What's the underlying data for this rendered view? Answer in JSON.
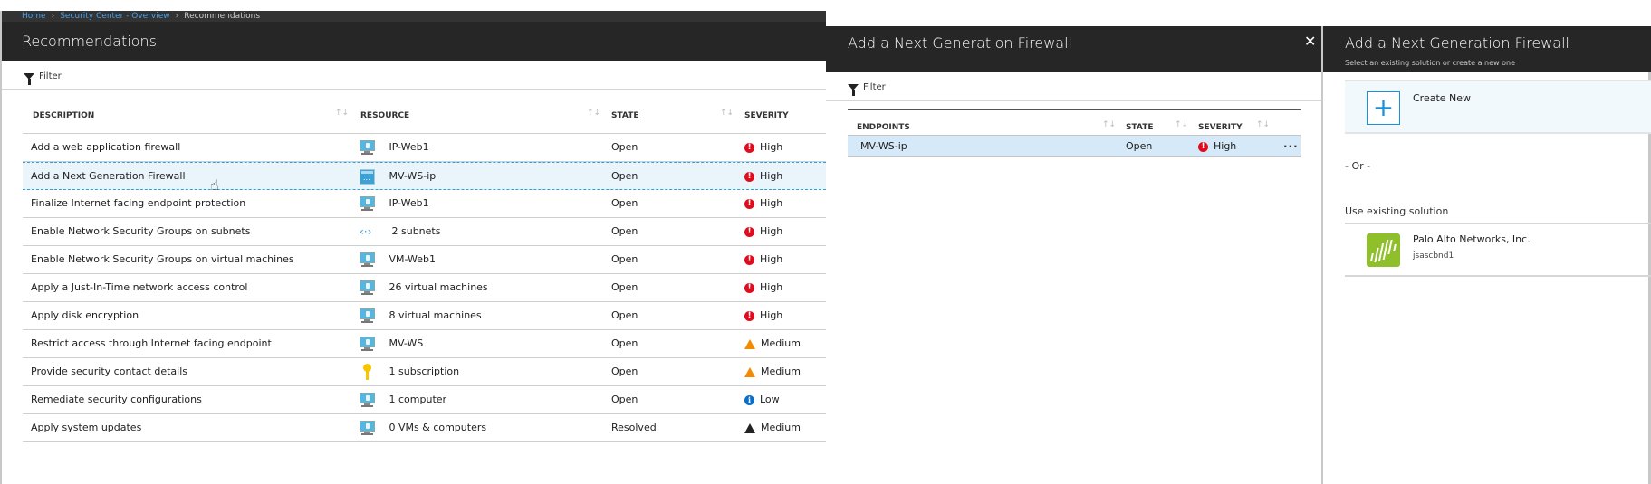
{
  "breadcrumb": {
    "items": [
      "Home",
      "Security Center - Overview",
      "Recommendations"
    ]
  },
  "left": {
    "title": "Recommendations",
    "filter_label": "Filter",
    "columns": [
      "DESCRIPTION",
      "RESOURCE",
      "STATE",
      "SEVERITY"
    ],
    "sort_glyph": "↑↓",
    "rows": [
      {
        "description": "Add a web application firewall",
        "resource": "IP-Web1",
        "resource_icon": "vm-icon",
        "state": "Open",
        "severity": "High"
      },
      {
        "description": "Add a Next Generation Firewall",
        "resource": "MV-WS-ip",
        "resource_icon": "public-ip-icon",
        "state": "Open",
        "severity": "High",
        "selected": true
      },
      {
        "description": "Finalize Internet facing endpoint protection",
        "resource": "IP-Web1",
        "resource_icon": "vm-icon",
        "state": "Open",
        "severity": "High"
      },
      {
        "description": "Enable Network Security Groups on subnets",
        "resource": "2 subnets",
        "resource_icon": "subnet-icon",
        "state": "Open",
        "severity": "High"
      },
      {
        "description": "Enable Network Security Groups on virtual machines",
        "resource": "VM-Web1",
        "resource_icon": "vm-icon",
        "state": "Open",
        "severity": "High"
      },
      {
        "description": "Apply a Just-In-Time network access control",
        "resource": "26 virtual machines",
        "resource_icon": "vm-icon",
        "state": "Open",
        "severity": "High"
      },
      {
        "description": "Apply disk encryption",
        "resource": "8 virtual machines",
        "resource_icon": "vm-icon",
        "state": "Open",
        "severity": "High"
      },
      {
        "description": "Restrict access through Internet facing endpoint",
        "resource": "MV-WS",
        "resource_icon": "vm-icon",
        "state": "Open",
        "severity": "Medium"
      },
      {
        "description": "Provide security contact details",
        "resource": "1 subscription",
        "resource_icon": "key-icon",
        "state": "Open",
        "severity": "Medium"
      },
      {
        "description": "Remediate security configurations",
        "resource": "1 computer",
        "resource_icon": "vm-icon",
        "state": "Open",
        "severity": "Low"
      },
      {
        "description": "Apply system updates",
        "resource": "0 VMs & computers",
        "resource_icon": "vm-icon",
        "state": "Resolved",
        "severity": "Medium",
        "severity_style": "dark"
      }
    ]
  },
  "middle": {
    "title": "Add a Next Generation Firewall",
    "close_glyph": "✕",
    "filter_label": "Filter",
    "columns": [
      "ENDPOINTS",
      "STATE",
      "SEVERITY"
    ],
    "rows": [
      {
        "endpoint": "MV-WS-ip",
        "state": "Open",
        "severity": "High",
        "more": "..."
      }
    ]
  },
  "right": {
    "title": "Add a Next Generation Firewall",
    "subtitle": "Select an existing solution or create a new one",
    "create_new_label": "Create New",
    "plus_glyph": "+",
    "or_label": "- Or -",
    "existing_label": "Use existing solution",
    "solution": {
      "name": "Palo Alto Networks, Inc.",
      "id": "jsascbnd1"
    }
  },
  "colors": {
    "header_bg": "#262626",
    "link": "#4aa0e6",
    "high": "#e00b1c",
    "medium": "#f38b00",
    "low": "#0b6fc7",
    "selected_row": "#eaf4fb",
    "accent": "#1e90d8",
    "palo_alto": "#8fbf2a"
  }
}
